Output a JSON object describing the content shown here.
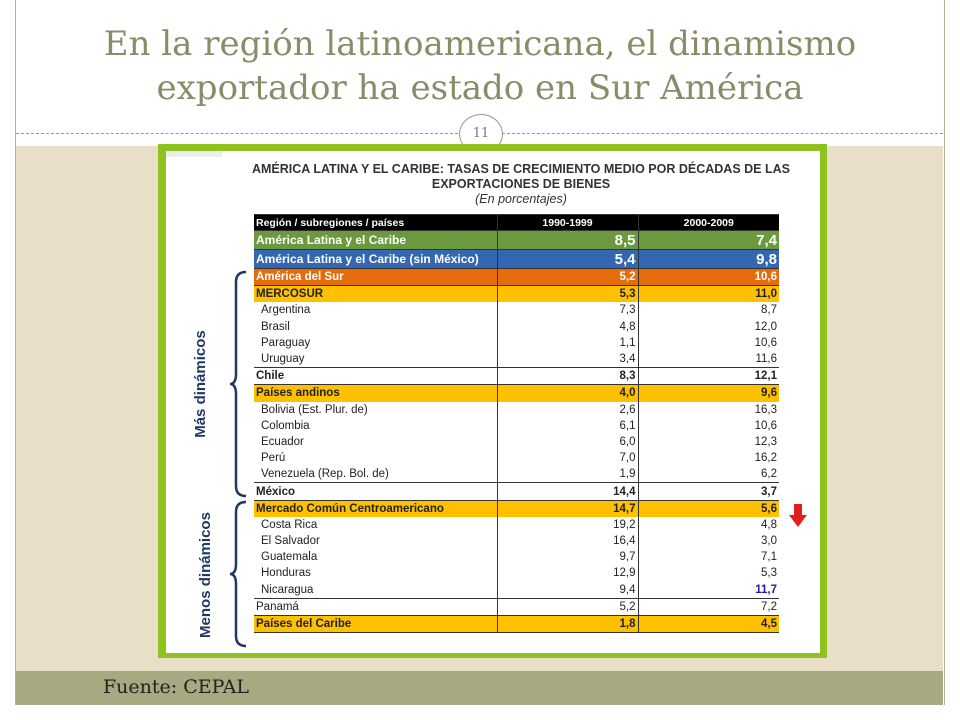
{
  "slide": {
    "title_line1": "En la región latinoamericana, el dinamismo",
    "title_line2": "exportador ha estado en Sur América",
    "page_number": "11",
    "source": "Fuente: CEPAL"
  },
  "figure": {
    "title_line1": "AMÉRICA LATINA Y EL CARIBE: TASAS DE CRECIMIENTO MEDIO POR DÉCADAS DE LAS",
    "title_line2": "EXPORTACIONES DE BIENES",
    "title_line3": "(En porcentajes)",
    "label_more": "Más dinámicos",
    "label_less": "Menos dinámicos",
    "arrow_icon": "down-arrow-icon",
    "arrow_color": "#e02020",
    "panel_color": "#8dc21f",
    "columns": [
      "Región / subregiones / países",
      "1990-1999",
      "2000-2009"
    ]
  },
  "chart_data": {
    "type": "table",
    "title": "AMÉRICA LATINA Y EL CARIBE: TASAS DE CRECIMIENTO MEDIO POR DÉCADAS DE LAS EXPORTACIONES DE BIENES",
    "subtitle": "(En porcentajes)",
    "columns": [
      "Región / subregiones / países",
      "1990-1999",
      "2000-2009"
    ],
    "rows": [
      {
        "name": "América Latina y el Caribe",
        "v1": "8,5",
        "v2": "7,4",
        "style": "green"
      },
      {
        "name": "América Latina y el Caribe (sin México)",
        "v1": "5,4",
        "v2": "9,8",
        "style": "blue"
      },
      {
        "name": "América del Sur",
        "v1": "5,2",
        "v2": "10,6",
        "style": "orange"
      },
      {
        "name": "MERCOSUR",
        "v1": "5,3",
        "v2": "11,0",
        "style": "yellow"
      },
      {
        "name": "Argentina",
        "v1": "7,3",
        "v2": "8,7",
        "style": "sub"
      },
      {
        "name": "Brasil",
        "v1": "4,8",
        "v2": "12,0",
        "style": "sub"
      },
      {
        "name": "Paraguay",
        "v1": "1,1",
        "v2": "10,6",
        "style": "sub"
      },
      {
        "name": "Uruguay",
        "v1": "3,4",
        "v2": "11,6",
        "style": "sub"
      },
      {
        "name": "Chile",
        "v1": "8,3",
        "v2": "12,1",
        "style": "bold"
      },
      {
        "name": "Países andinos",
        "v1": "4,0",
        "v2": "9,6",
        "style": "yellow"
      },
      {
        "name": "Bolivia (Est. Plur. de)",
        "v1": "2,6",
        "v2": "16,3",
        "style": "sub"
      },
      {
        "name": "Colombia",
        "v1": "6,1",
        "v2": "10,6",
        "style": "sub"
      },
      {
        "name": "Ecuador",
        "v1": "6,0",
        "v2": "12,3",
        "style": "sub"
      },
      {
        "name": "Perú",
        "v1": "7,0",
        "v2": "16,2",
        "style": "sub"
      },
      {
        "name": "Venezuela (Rep. Bol. de)",
        "v1": "1,9",
        "v2": "6,2",
        "style": "sub"
      },
      {
        "name": "México",
        "v1": "14,4",
        "v2": "3,7",
        "style": "bold"
      },
      {
        "name": "Mercado Común Centroamericano",
        "v1": "14,7",
        "v2": "5,6",
        "style": "yellow"
      },
      {
        "name": "Costa Rica",
        "v1": "19,2",
        "v2": "4,8",
        "style": "sub"
      },
      {
        "name": "El Salvador",
        "v1": "16,4",
        "v2": "3,0",
        "style": "sub"
      },
      {
        "name": "Guatemala",
        "v1": "9,7",
        "v2": "7,1",
        "style": "sub"
      },
      {
        "name": "Honduras",
        "v1": "12,9",
        "v2": "5,3",
        "style": "sub"
      },
      {
        "name": "Nicaragua",
        "v1": "9,4",
        "v2": "11,7",
        "style": "sub-hi"
      },
      {
        "name": "Panamá",
        "v1": "5,2",
        "v2": "7,2",
        "style": "plain"
      },
      {
        "name": "Países del Caribe",
        "v1": "1,8",
        "v2": "4,5",
        "style": "yellow"
      }
    ]
  }
}
